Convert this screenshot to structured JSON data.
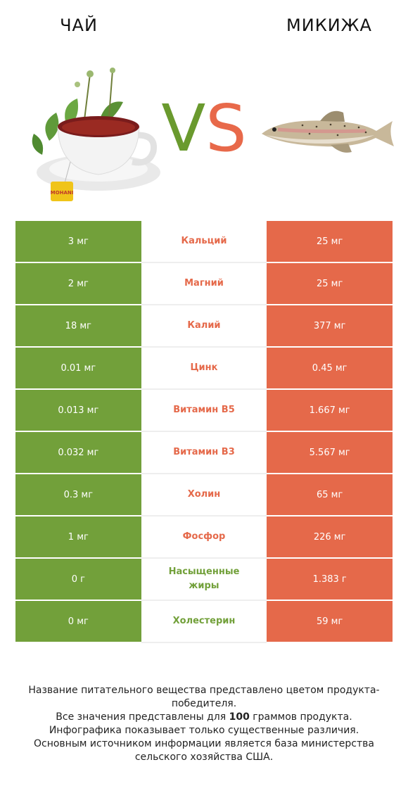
{
  "header": {
    "left_title": "ЧАЙ",
    "right_title": "МИКИЖА",
    "vs_v": "V",
    "vs_s": "S"
  },
  "images": {
    "left": "tea-cup-icon",
    "right": "trout-fish-icon",
    "tea_tag_text": "MOHANI"
  },
  "colors": {
    "left_accent": "#72a03a",
    "right_accent": "#e5694a"
  },
  "rows": [
    {
      "left": "3 мг",
      "name": "Кальций",
      "right": "25 мг",
      "winner": "right"
    },
    {
      "left": "2 мг",
      "name": "Магний",
      "right": "25 мг",
      "winner": "right"
    },
    {
      "left": "18 мг",
      "name": "Калий",
      "right": "377 мг",
      "winner": "right"
    },
    {
      "left": "0.01 мг",
      "name": "Цинк",
      "right": "0.45 мг",
      "winner": "right"
    },
    {
      "left": "0.013 мг",
      "name": "Витамин B5",
      "right": "1.667 мг",
      "winner": "right"
    },
    {
      "left": "0.032 мг",
      "name": "Витамин B3",
      "right": "5.567 мг",
      "winner": "right"
    },
    {
      "left": "0.3 мг",
      "name": "Холин",
      "right": "65 мг",
      "winner": "right"
    },
    {
      "left": "1 мг",
      "name": "Фосфор",
      "right": "226 мг",
      "winner": "right"
    },
    {
      "left": "0 г",
      "name": "Насыщенные жиры",
      "right": "1.383 г",
      "winner": "left"
    },
    {
      "left": "0 мг",
      "name": "Холестерин",
      "right": "59 мг",
      "winner": "left"
    }
  ],
  "footer": {
    "line1": "Название питательного вещества представлено цветом продукта-победителя.",
    "line2_pre": "Все значения представлены для ",
    "line2_bold": "100",
    "line2_post": " граммов продукта.",
    "line3": "Инфографика показывает только существенные различия.",
    "line4": "Основным источником информации является база министерства сельского хозяйства США."
  }
}
